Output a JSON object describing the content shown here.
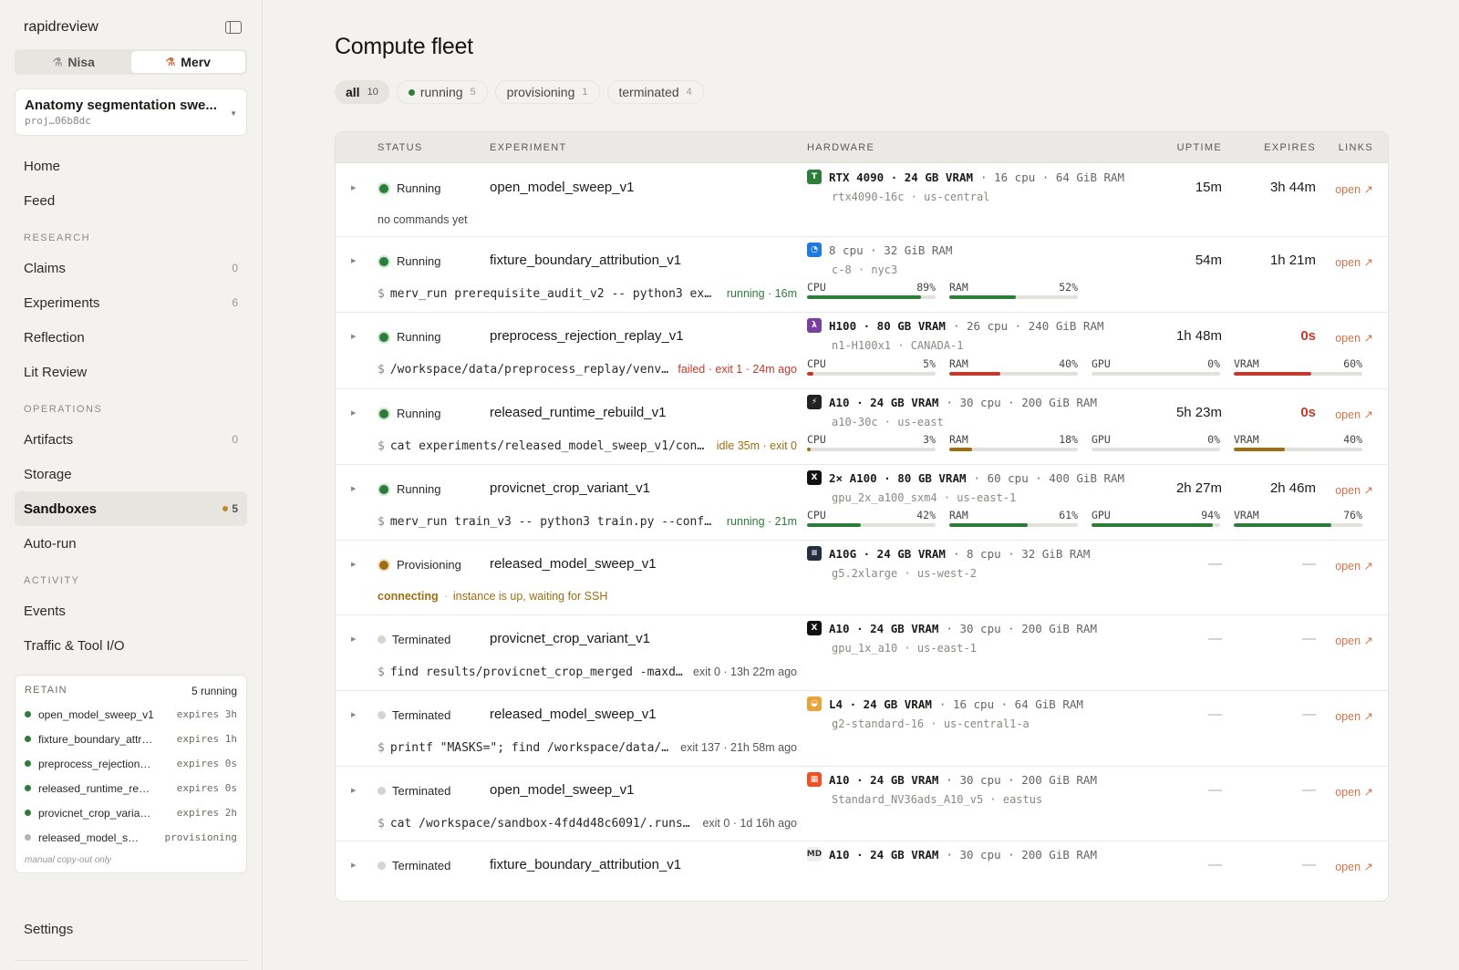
{
  "app": {
    "name": "rapidreview"
  },
  "users": [
    {
      "name": "Nisa",
      "active": false
    },
    {
      "name": "Merv",
      "active": true
    }
  ],
  "project": {
    "title": "Anatomy segmentation swe...",
    "id": "proj…06b8dc"
  },
  "nav": {
    "home": "Home",
    "feed": "Feed",
    "research_label": "RESEARCH",
    "claims": {
      "label": "Claims",
      "count": "0"
    },
    "experiments": {
      "label": "Experiments",
      "count": "6"
    },
    "reflection": "Reflection",
    "lit_review": "Lit Review",
    "operations_label": "OPERATIONS",
    "artifacts": {
      "label": "Artifacts",
      "count": "0"
    },
    "storage": "Storage",
    "sandboxes": {
      "label": "Sandboxes",
      "count": "5"
    },
    "auto_run": "Auto-run",
    "activity_label": "ACTIVITY",
    "events": "Events",
    "traffic": "Traffic & Tool I/O",
    "settings": "Settings"
  },
  "retain": {
    "title": "RETAIN",
    "count": "5 running",
    "items": [
      {
        "name": "open_model_sweep_v1",
        "expires": "expires 3h",
        "state": "running"
      },
      {
        "name": "fixture_boundary_attr…",
        "expires": "expires 1h",
        "state": "running"
      },
      {
        "name": "preprocess_rejection…",
        "expires": "expires 0s",
        "state": "running"
      },
      {
        "name": "released_runtime_re…",
        "expires": "expires 0s",
        "state": "running"
      },
      {
        "name": "provicnet_crop_varia…",
        "expires": "expires 2h",
        "state": "running"
      },
      {
        "name": "released_model_s…",
        "expires": "provisioning",
        "state": "provisioning"
      }
    ],
    "note": "manual copy-out only"
  },
  "page": {
    "title": "Compute fleet"
  },
  "filters": [
    {
      "label": "all",
      "count": "10",
      "active": true
    },
    {
      "label": "running",
      "count": "5",
      "dot": true
    },
    {
      "label": "provisioning",
      "count": "1"
    },
    {
      "label": "terminated",
      "count": "4"
    }
  ],
  "columns": {
    "status": "STATUS",
    "experiment": "EXPERIMENT",
    "hardware": "HARDWARE",
    "uptime": "UPTIME",
    "expires": "EXPIRES",
    "links": "LINKS"
  },
  "rows": [
    {
      "status": "Running",
      "state": "running",
      "experiment": "open_model_sweep_v1",
      "note": "no commands yet",
      "hw_icon": "tensordock-icon",
      "hw_icon_color": "#2d7d3a",
      "hw_icon_text": "T",
      "hw_main": "RTX 4090 · 24 GB VRAM",
      "hw_rest": "· 16 cpu · 64 GiB RAM",
      "hw_sub": "rtx4090-16c · us-central",
      "uptime": "15m",
      "expires": "3h 44m",
      "link": "open ↗"
    },
    {
      "status": "Running",
      "state": "running",
      "experiment": "fixture_boundary_attribution_v1",
      "cmd": "merv_run prerequisite_audit_v2 -- python3 exp...",
      "cmd_status": "running · 16m",
      "cmd_color": "green",
      "hw_icon": "digitalocean-icon",
      "hw_icon_color": "#1f7ae0",
      "hw_icon_text": "◔",
      "hw_main": "",
      "hw_rest": "8 cpu · 32 GiB RAM",
      "hw_sub": "c-8 · nyc3",
      "uptime": "54m",
      "expires": "1h 21m",
      "link": "open ↗",
      "meters": [
        {
          "label": "CPU",
          "value": "89%",
          "pct": 89,
          "color": "green"
        },
        {
          "label": "RAM",
          "value": "52%",
          "pct": 52,
          "color": "green"
        }
      ]
    },
    {
      "status": "Running",
      "state": "running",
      "experiment": "preprocess_rejection_replay_v1",
      "cmd": "/workspace/data/preprocess_replay/venv...",
      "cmd_status": "failed · exit 1 · 24m ago",
      "cmd_color": "red",
      "hw_icon": "lambda-icon",
      "hw_icon_color": "#7b3fa0",
      "hw_icon_text": "λ",
      "hw_main": "H100 · 80 GB VRAM",
      "hw_rest": "· 26 cpu · 240 GiB RAM",
      "hw_sub": "n1-H100x1 · CANADA-1",
      "uptime": "1h 48m",
      "expires": "0s",
      "expires_red": true,
      "link": "open ↗",
      "meters": [
        {
          "label": "CPU",
          "value": "5%",
          "pct": 5,
          "color": "red"
        },
        {
          "label": "RAM",
          "value": "40%",
          "pct": 40,
          "color": "red"
        },
        {
          "label": "GPU",
          "value": "0%",
          "pct": 0,
          "color": "red"
        },
        {
          "label": "VRAM",
          "value": "60%",
          "pct": 60,
          "color": "red"
        }
      ]
    },
    {
      "status": "Running",
      "state": "running",
      "experiment": "released_runtime_rebuild_v1",
      "cmd": "cat experiments/released_model_sweep_v1/conf...",
      "cmd_status": "idle 35m · exit 0",
      "cmd_color": "amber",
      "hw_icon": "vast-icon",
      "hw_icon_color": "#222",
      "hw_icon_text": "⚡",
      "hw_main": "A10 · 24 GB VRAM",
      "hw_rest": "· 30 cpu · 200 GiB RAM",
      "hw_sub": "a10-30c · us-east",
      "uptime": "5h 23m",
      "expires": "0s",
      "expires_red": true,
      "link": "open ↗",
      "meters": [
        {
          "label": "CPU",
          "value": "3%",
          "pct": 3,
          "color": "amber"
        },
        {
          "label": "RAM",
          "value": "18%",
          "pct": 18,
          "color": "amber"
        },
        {
          "label": "GPU",
          "value": "0%",
          "pct": 0,
          "color": "amber"
        },
        {
          "label": "VRAM",
          "value": "40%",
          "pct": 40,
          "color": "amber"
        }
      ]
    },
    {
      "status": "Running",
      "state": "running",
      "experiment": "provicnet_crop_variant_v1",
      "cmd": "merv_run train_v3 -- python3 train.py --confi...",
      "cmd_status": "running · 21m",
      "cmd_color": "green",
      "hw_icon": "x-icon",
      "hw_icon_color": "#111",
      "hw_icon_text": "X",
      "hw_main": "2× A100 · 80 GB VRAM",
      "hw_rest": "· 60 cpu · 400 GiB RAM",
      "hw_sub": "gpu_2x_a100_sxm4 · us-east-1",
      "uptime": "2h 27m",
      "expires": "2h 46m",
      "link": "open ↗",
      "meters": [
        {
          "label": "CPU",
          "value": "42%",
          "pct": 42,
          "color": "green"
        },
        {
          "label": "RAM",
          "value": "61%",
          "pct": 61,
          "color": "green"
        },
        {
          "label": "GPU",
          "value": "94%",
          "pct": 94,
          "color": "green"
        },
        {
          "label": "VRAM",
          "value": "76%",
          "pct": 76,
          "color": "green"
        }
      ]
    },
    {
      "status": "Provisioning",
      "state": "provisioning",
      "experiment": "released_model_sweep_v1",
      "note_label": "connecting",
      "note": "instance is up, waiting for SSH",
      "hw_icon": "aws-icon",
      "hw_icon_color": "#232f3e",
      "hw_icon_text": "≡",
      "hw_main": "A10G · 24 GB VRAM",
      "hw_rest": "· 8 cpu · 32 GiB RAM",
      "hw_sub": "g5.2xlarge · us-west-2",
      "uptime": "—",
      "expires": "—",
      "link": "open ↗"
    },
    {
      "status": "Terminated",
      "state": "terminated",
      "experiment": "provicnet_crop_variant_v1",
      "cmd": "find results/provicnet_crop_merged -maxd...",
      "cmd_status": "exit 0 · 13h 22m ago",
      "cmd_color": "grey",
      "hw_icon": "x-icon",
      "hw_icon_color": "#111",
      "hw_icon_text": "X",
      "hw_main": "A10 · 24 GB VRAM",
      "hw_rest": "· 30 cpu · 200 GiB RAM",
      "hw_sub": "gpu_1x_a10 · us-east-1",
      "uptime": "—",
      "expires": "—",
      "link": "open ↗"
    },
    {
      "status": "Terminated",
      "state": "terminated",
      "experiment": "released_model_sweep_v1",
      "cmd": "printf \"MASKS=\"; find /workspace/data/...",
      "cmd_status": "exit 137 · 21h 58m ago",
      "cmd_color": "grey",
      "hw_icon": "gcp-icon",
      "hw_icon_color": "#e8a33a",
      "hw_icon_text": "◒",
      "hw_main": "L4 · 24 GB VRAM",
      "hw_rest": "· 16 cpu · 64 GiB RAM",
      "hw_sub": "g2-standard-16 · us-central1-a",
      "uptime": "—",
      "expires": "—",
      "link": "open ↗"
    },
    {
      "status": "Terminated",
      "state": "terminated",
      "experiment": "open_model_sweep_v1",
      "cmd": "cat /workspace/sandbox-4fd4d48c6091/.runs/...",
      "cmd_status": "exit 0 · 1d 16h ago",
      "cmd_color": "grey",
      "hw_icon": "azure-icon",
      "hw_icon_color": "#f25022",
      "hw_icon_text": "▦",
      "hw_main": "A10 · 24 GB VRAM",
      "hw_rest": "· 30 cpu · 200 GiB RAM",
      "hw_sub": "Standard_NV36ads_A10_v5 · eastus",
      "uptime": "—",
      "expires": "—",
      "link": "open ↗"
    },
    {
      "status": "Terminated",
      "state": "terminated",
      "experiment": "fixture_boundary_attribution_v1",
      "hw_icon": "md-icon",
      "hw_icon_color": "#eeeeee",
      "hw_icon_text": "MD",
      "hw_main": "A10 · 24 GB VRAM",
      "hw_rest": "· 30 cpu · 200 GiB RAM",
      "uptime": "—",
      "expires": "—",
      "link": "open ↗"
    }
  ]
}
